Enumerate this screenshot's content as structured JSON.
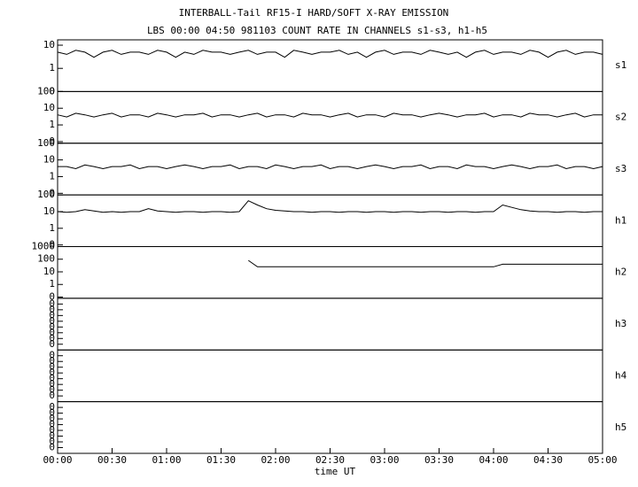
{
  "chart_data": {
    "type": "line",
    "title": "INTERBALL-Tail RF15-I HARD/SOFT X-RAY EMISSION",
    "subtitle": "LBS 00:00 04:50 981103  COUNT RATE IN CHANNELS s1-s3, h1-h5",
    "xlabel": "time UT",
    "log": true,
    "color": "#000000",
    "xlim": [
      0,
      300
    ],
    "xticks": [
      {
        "value": 0,
        "label": "00:00"
      },
      {
        "value": 30,
        "label": "00:30"
      },
      {
        "value": 60,
        "label": "01:00"
      },
      {
        "value": 90,
        "label": "01:30"
      },
      {
        "value": 120,
        "label": "02:00"
      },
      {
        "value": 150,
        "label": "02:30"
      },
      {
        "value": 180,
        "label": "03:00"
      },
      {
        "value": 210,
        "label": "03:30"
      },
      {
        "value": 240,
        "label": "04:00"
      },
      {
        "value": 270,
        "label": "04:30"
      },
      {
        "value": 300,
        "label": "05:00"
      }
    ],
    "x": [
      0,
      5,
      10,
      15,
      20,
      25,
      30,
      35,
      40,
      45,
      50,
      55,
      60,
      65,
      70,
      75,
      80,
      85,
      90,
      95,
      100,
      105,
      110,
      115,
      120,
      125,
      130,
      135,
      140,
      145,
      150,
      155,
      160,
      165,
      170,
      175,
      180,
      185,
      190,
      195,
      200,
      205,
      210,
      215,
      220,
      225,
      230,
      235,
      240,
      245,
      250,
      255,
      260,
      265,
      270,
      275,
      280,
      285,
      290,
      295,
      300
    ],
    "panels": [
      {
        "name": "s1",
        "ylim": [
          0.1,
          17
        ],
        "yticks": [
          {
            "value": 0.1,
            "label": "0"
          },
          1,
          10
        ],
        "values": [
          5,
          4,
          6,
          5,
          3,
          5,
          6,
          4,
          5,
          5,
          4,
          6,
          5,
          3,
          5,
          4,
          6,
          5,
          5,
          4,
          5,
          6,
          4,
          5,
          5,
          3,
          6,
          5,
          4,
          5,
          5,
          6,
          4,
          5,
          3,
          5,
          6,
          4,
          5,
          5,
          4,
          6,
          5,
          4,
          5,
          3,
          5,
          6,
          4,
          5,
          5,
          4,
          6,
          5,
          3,
          5,
          6,
          4,
          5,
          5,
          4
        ]
      },
      {
        "name": "s2",
        "ylim": [
          0.08,
          100
        ],
        "yticks": [
          {
            "value": 0.1,
            "label": "0"
          },
          1,
          10,
          100
        ],
        "values": [
          4,
          3,
          5,
          4,
          3,
          4,
          5,
          3,
          4,
          4,
          3,
          5,
          4,
          3,
          4,
          4,
          5,
          3,
          4,
          4,
          3,
          4,
          5,
          3,
          4,
          4,
          3,
          5,
          4,
          4,
          3,
          4,
          5,
          3,
          4,
          4,
          3,
          5,
          4,
          4,
          3,
          4,
          5,
          4,
          3,
          4,
          4,
          5,
          3,
          4,
          4,
          3,
          5,
          4,
          4,
          3,
          4,
          5,
          3,
          4,
          4
        ]
      },
      {
        "name": "s3",
        "ylim": [
          0.08,
          100
        ],
        "yticks": [
          {
            "value": 0.1,
            "label": "0"
          },
          1,
          10,
          100
        ],
        "values": [
          4,
          4,
          3,
          5,
          4,
          3,
          4,
          4,
          5,
          3,
          4,
          4,
          3,
          4,
          5,
          4,
          3,
          4,
          4,
          5,
          3,
          4,
          4,
          3,
          5,
          4,
          3,
          4,
          4,
          5,
          3,
          4,
          4,
          3,
          4,
          5,
          4,
          3,
          4,
          4,
          5,
          3,
          4,
          4,
          3,
          5,
          4,
          4,
          3,
          4,
          5,
          4,
          3,
          4,
          4,
          5,
          3,
          4,
          4,
          3,
          4
        ]
      },
      {
        "name": "h1",
        "ylim": [
          0.08,
          100
        ],
        "yticks": [
          {
            "value": 0.1,
            "label": "0"
          },
          1,
          10,
          100
        ],
        "values": [
          10,
          9,
          10,
          13,
          11,
          9,
          10,
          9,
          10,
          10,
          15,
          11,
          10,
          9,
          10,
          10,
          9,
          10,
          10,
          9,
          10,
          45,
          25,
          15,
          12,
          11,
          10,
          10,
          9,
          10,
          10,
          9,
          10,
          10,
          9,
          10,
          10,
          9,
          10,
          10,
          9,
          10,
          10,
          9,
          10,
          10,
          9,
          10,
          10,
          25,
          18,
          13,
          11,
          10,
          10,
          9,
          10,
          10,
          9,
          10,
          10
        ]
      },
      {
        "name": "h2",
        "ylim": [
          0.08,
          1000
        ],
        "yticks": [
          {
            "value": 0.1,
            "label": "0"
          },
          1,
          10,
          100,
          1000
        ],
        "values": [
          null,
          null,
          null,
          null,
          null,
          null,
          null,
          null,
          null,
          null,
          null,
          null,
          null,
          null,
          null,
          null,
          null,
          null,
          null,
          null,
          null,
          80,
          25,
          25,
          25,
          25,
          25,
          25,
          25,
          25,
          25,
          25,
          25,
          25,
          25,
          25,
          25,
          25,
          25,
          25,
          25,
          25,
          25,
          25,
          25,
          25,
          25,
          25,
          25,
          40,
          40,
          40,
          40,
          40,
          40,
          40,
          40,
          40,
          40,
          40,
          40
        ]
      },
      {
        "name": "h3",
        "ylim": [
          1e-09,
          1
        ],
        "yticks": [
          {
            "value": 1e-08,
            "label": "0"
          },
          {
            "value": 1e-07,
            "label": "0"
          },
          {
            "value": 1e-06,
            "label": "0"
          },
          {
            "value": 1e-05,
            "label": "0"
          },
          {
            "value": 0.0001,
            "label": "0"
          },
          {
            "value": 0.001,
            "label": "0"
          },
          {
            "value": 0.01,
            "label": "0"
          },
          {
            "value": 0.1,
            "label": "0"
          }
        ],
        "values": []
      },
      {
        "name": "h4",
        "ylim": [
          1e-09,
          1
        ],
        "yticks": [
          {
            "value": 1e-08,
            "label": "0"
          },
          {
            "value": 1e-07,
            "label": "0"
          },
          {
            "value": 1e-06,
            "label": "0"
          },
          {
            "value": 1e-05,
            "label": "0"
          },
          {
            "value": 0.0001,
            "label": "0"
          },
          {
            "value": 0.001,
            "label": "0"
          },
          {
            "value": 0.01,
            "label": "0"
          },
          {
            "value": 0.1,
            "label": "0"
          }
        ],
        "values": []
      },
      {
        "name": "h5",
        "ylim": [
          1e-09,
          1
        ],
        "yticks": [
          {
            "value": 1e-08,
            "label": "0"
          },
          {
            "value": 1e-07,
            "label": "0"
          },
          {
            "value": 1e-06,
            "label": "0"
          },
          {
            "value": 1e-05,
            "label": "0"
          },
          {
            "value": 0.0001,
            "label": "0"
          },
          {
            "value": 0.001,
            "label": "0"
          },
          {
            "value": 0.01,
            "label": "0"
          },
          {
            "value": 0.1,
            "label": "0"
          }
        ],
        "values": []
      }
    ]
  }
}
